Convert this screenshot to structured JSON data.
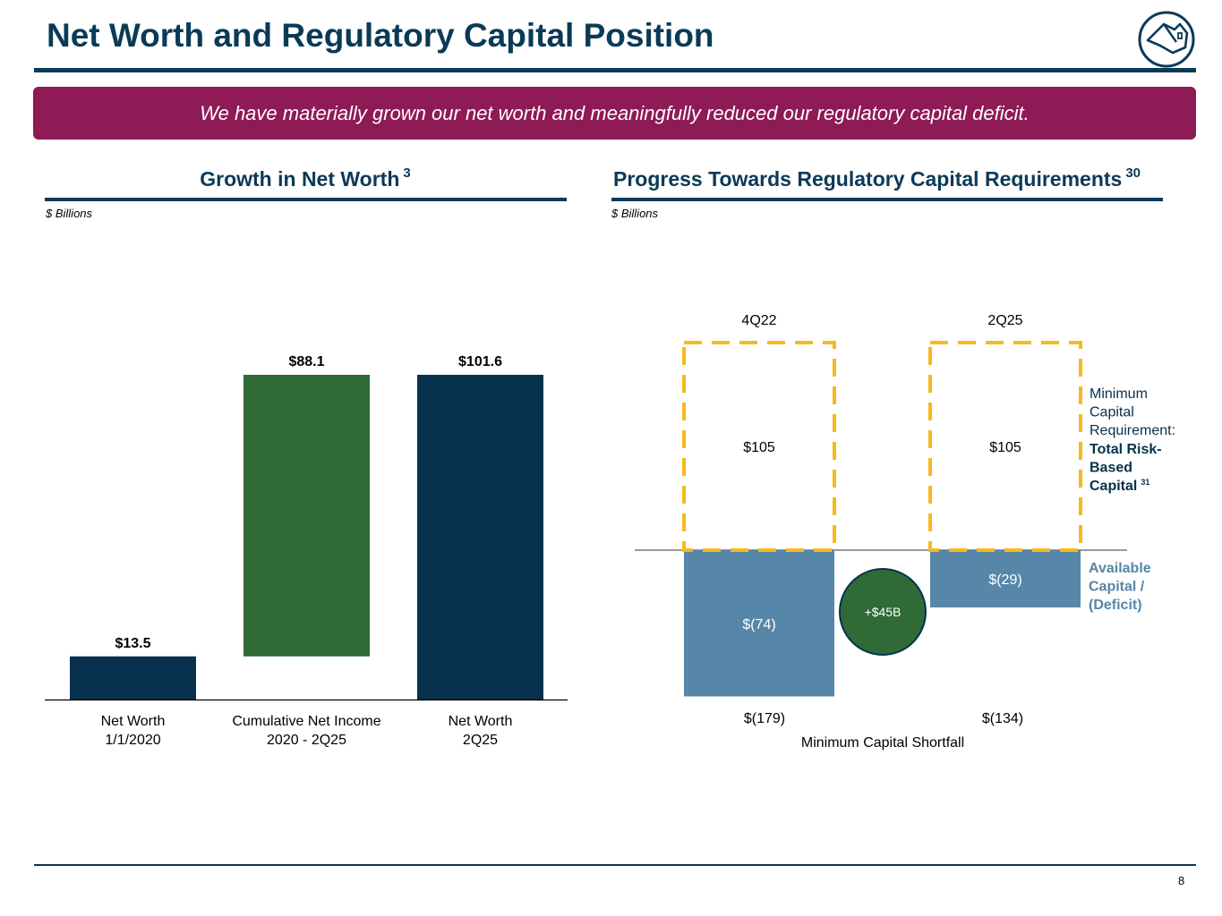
{
  "header": {
    "title": "Net Worth and Regulatory Capital Position",
    "banner": "We have materially grown our net worth and meaningfully reduced our regulatory capital deficit."
  },
  "left_panel": {
    "title": "Growth in Net Worth",
    "footnote": "3",
    "units": "$ Billions"
  },
  "right_panel": {
    "title": "Progress Towards Regulatory Capital Requirements",
    "footnote": "30",
    "units": "$ Billions"
  },
  "page_number": "8",
  "colors": {
    "navy": "#07314d",
    "green": "#2f6a37",
    "steel_blue": "#5687a8",
    "dashed_gold": "#f7b91c",
    "banner": "#8e1a56",
    "title": "#0b3a56"
  },
  "chart_data": [
    {
      "type": "bar",
      "subtype": "waterfall",
      "title": "Growth in Net Worth",
      "units": "$ Billions",
      "categories": [
        "Net Worth\n1/1/2020",
        "Cumulative Net Income\n2020 - 2Q25",
        "Net Worth\n2Q25"
      ],
      "category_lines": [
        [
          "Net Worth",
          "1/1/2020"
        ],
        [
          "Cumulative Net Income",
          "2020 - 2Q25"
        ],
        [
          "Net Worth",
          "2Q25"
        ]
      ],
      "values": [
        13.5,
        88.1,
        101.6
      ],
      "bar_kinds": [
        "total",
        "increment",
        "total"
      ],
      "data_labels": [
        "$13.5",
        "$88.1",
        "$101.6"
      ],
      "ylim": [
        0,
        101.6
      ]
    },
    {
      "type": "bar",
      "subtype": "stacked",
      "title": "Progress Towards Regulatory Capital Requirements",
      "units": "$ Billions",
      "categories": [
        "4Q22",
        "2Q25"
      ],
      "series": [
        {
          "name": "Minimum Capital Requirement: Total Risk-Based Capital",
          "values": [
            105,
            105
          ],
          "labels": [
            "$105",
            "$105"
          ],
          "style": "dashed-outline"
        },
        {
          "name": "Available Capital / (Deficit)",
          "values": [
            -74,
            -29
          ],
          "labels": [
            "$(74)",
            "$(29)"
          ],
          "style": "filled"
        }
      ],
      "shortfall": {
        "label": "Minimum Capital Shortfall",
        "values": [
          "$(179)",
          "$(134)"
        ]
      },
      "change_callout": "+$45B",
      "legend": {
        "requirement_lines": [
          "Minimum",
          "Capital",
          "Requirement:"
        ],
        "requirement_bold_lines": [
          "Total Risk-",
          "Based",
          "Capital"
        ],
        "requirement_footnote": "31",
        "available_lines": [
          "Available",
          "Capital /",
          "(Deficit)"
        ]
      },
      "ylim": [
        -74,
        105
      ]
    }
  ]
}
